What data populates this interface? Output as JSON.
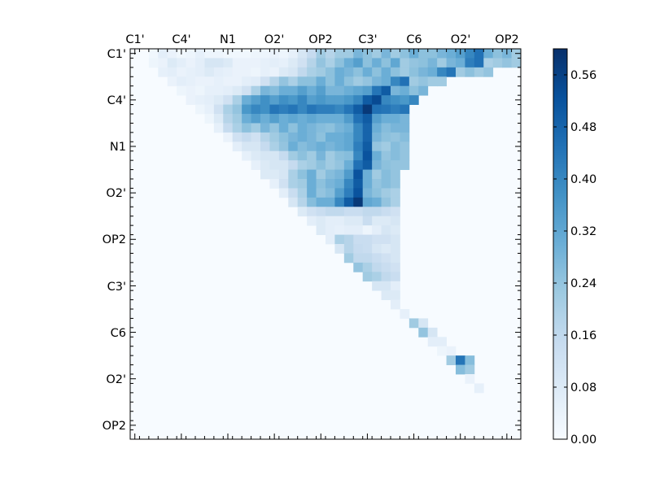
{
  "chart_data": {
    "type": "heatmap",
    "title": "",
    "xlabel": "",
    "ylabel": "",
    "n": 42,
    "x_tick_labels": [
      "C1'",
      "C4'",
      "N1",
      "O2'",
      "OP2",
      "C3'",
      "C6",
      "O2'",
      "OP2"
    ],
    "y_tick_labels": [
      "C1'",
      "C4'",
      "N1",
      "O2'",
      "OP2",
      "C3'",
      "C6",
      "O2'",
      "OP2"
    ],
    "label_positions": [
      0.5,
      5.5,
      10.5,
      15.5,
      20.5,
      25.5,
      30.5,
      35.5,
      40.5
    ],
    "colorbar": {
      "min": 0.0,
      "max": 0.6,
      "ticks": [
        "0.00",
        "0.08",
        "0.16",
        "0.24",
        "0.32",
        "0.40",
        "0.48",
        "0.56"
      ],
      "tick_values": [
        0.0,
        0.08,
        0.16,
        0.24,
        0.32,
        0.4,
        0.48,
        0.56
      ],
      "colormap": "Blues"
    },
    "colors": [
      "#f7fbff",
      "#deebf7",
      "#c6dbef",
      "#9ecae1",
      "#6baed6",
      "#4292c6",
      "#2171b5",
      "#08519c",
      "#08306b"
    ],
    "upper_rows": [
      [
        0.0,
        0.02,
        0.06,
        0.04,
        0.02,
        0.03,
        0.05,
        0.03,
        0.03,
        0.02,
        0.02,
        0.02,
        0.03,
        0.03,
        0.04,
        0.03,
        0.05,
        0.1,
        0.15,
        0.22,
        0.18,
        0.22,
        0.22,
        0.28,
        0.25,
        0.22,
        0.28,
        0.22,
        0.25,
        0.3,
        0.25,
        0.25,
        0.28,
        0.3,
        0.34,
        0.4,
        0.45,
        0.3,
        0.25,
        0.28,
        0.22
      ],
      [
        0.03,
        0.04,
        0.08,
        0.06,
        0.04,
        0.06,
        0.1,
        0.1,
        0.08,
        0.04,
        0.04,
        0.04,
        0.05,
        0.06,
        0.05,
        0.08,
        0.12,
        0.18,
        0.24,
        0.2,
        0.25,
        0.3,
        0.34,
        0.25,
        0.3,
        0.25,
        0.32,
        0.22,
        0.24,
        0.25,
        0.28,
        0.22,
        0.28,
        0.3,
        0.42,
        0.45,
        0.2,
        0.22,
        0.24,
        0.22
      ],
      [
        0.05,
        0.06,
        0.04,
        0.05,
        0.06,
        0.08,
        0.06,
        0.05,
        0.04,
        0.04,
        0.03,
        0.05,
        0.04,
        0.08,
        0.1,
        0.16,
        0.2,
        0.22,
        0.25,
        0.3,
        0.28,
        0.25,
        0.3,
        0.25,
        0.3,
        0.25,
        0.22,
        0.25,
        0.28,
        0.3,
        0.4,
        0.44,
        0.22,
        0.25,
        0.22,
        0.24
      ],
      [
        0.04,
        0.06,
        0.05,
        0.04,
        0.04,
        0.05,
        0.04,
        0.04,
        0.06,
        0.07,
        0.12,
        0.18,
        0.24,
        0.2,
        0.25,
        0.25,
        0.3,
        0.25,
        0.3,
        0.25,
        0.22,
        0.24,
        0.28,
        0.3,
        0.4,
        0.45,
        0.22,
        0.24,
        0.22,
        0.22
      ],
      [
        0.03,
        0.04,
        0.03,
        0.05,
        0.05,
        0.06,
        0.08,
        0.12,
        0.2,
        0.28,
        0.26,
        0.3,
        0.3,
        0.34,
        0.3,
        0.34,
        0.28,
        0.28,
        0.3,
        0.32,
        0.34,
        0.44,
        0.5,
        0.28,
        0.3,
        0.25,
        0.28
      ],
      [
        0.04,
        0.05,
        0.06,
        0.08,
        0.12,
        0.2,
        0.3,
        0.34,
        0.38,
        0.34,
        0.38,
        0.36,
        0.4,
        0.34,
        0.36,
        0.34,
        0.34,
        0.36,
        0.4,
        0.5,
        0.54,
        0.4,
        0.38,
        0.36,
        0.4
      ],
      [
        0.03,
        0.05,
        0.12,
        0.2,
        0.24,
        0.36,
        0.4,
        0.38,
        0.44,
        0.42,
        0.44,
        0.4,
        0.44,
        0.42,
        0.42,
        0.4,
        0.44,
        0.5,
        0.58,
        0.45,
        0.44,
        0.42,
        0.44
      ],
      [
        0.03,
        0.08,
        0.18,
        0.22,
        0.3,
        0.34,
        0.3,
        0.34,
        0.3,
        0.32,
        0.3,
        0.32,
        0.3,
        0.3,
        0.3,
        0.35,
        0.45,
        0.5,
        0.34,
        0.3,
        0.3,
        0.28
      ],
      [
        0.05,
        0.15,
        0.2,
        0.25,
        0.22,
        0.28,
        0.24,
        0.3,
        0.25,
        0.3,
        0.28,
        0.26,
        0.25,
        0.28,
        0.3,
        0.4,
        0.48,
        0.3,
        0.26,
        0.28,
        0.28
      ],
      [
        0.04,
        0.12,
        0.15,
        0.12,
        0.18,
        0.22,
        0.25,
        0.28,
        0.3,
        0.28,
        0.25,
        0.3,
        0.3,
        0.32,
        0.4,
        0.48,
        0.28,
        0.25,
        0.24,
        0.26
      ],
      [
        0.06,
        0.1,
        0.1,
        0.15,
        0.2,
        0.24,
        0.3,
        0.26,
        0.28,
        0.3,
        0.28,
        0.3,
        0.32,
        0.42,
        0.5,
        0.24,
        0.22,
        0.26,
        0.24
      ],
      [
        0.05,
        0.08,
        0.1,
        0.1,
        0.15,
        0.22,
        0.25,
        0.22,
        0.28,
        0.22,
        0.25,
        0.26,
        0.4,
        0.52,
        0.3,
        0.24,
        0.26,
        0.24
      ],
      [
        0.05,
        0.08,
        0.1,
        0.1,
        0.15,
        0.2,
        0.22,
        0.25,
        0.22,
        0.24,
        0.3,
        0.45,
        0.5,
        0.28,
        0.25,
        0.24,
        0.24
      ],
      [
        0.08,
        0.08,
        0.1,
        0.2,
        0.25,
        0.3,
        0.22,
        0.26,
        0.28,
        0.35,
        0.52,
        0.3,
        0.22,
        0.26,
        0.24
      ],
      [
        0.05,
        0.12,
        0.2,
        0.22,
        0.3,
        0.25,
        0.28,
        0.3,
        0.4,
        0.5,
        0.3,
        0.24,
        0.26,
        0.24
      ],
      [
        0.06,
        0.14,
        0.2,
        0.3,
        0.24,
        0.26,
        0.34,
        0.42,
        0.52,
        0.28,
        0.25,
        0.22,
        0.2
      ],
      [
        0.1,
        0.18,
        0.26,
        0.3,
        0.3,
        0.4,
        0.5,
        0.58,
        0.32,
        0.3,
        0.24,
        0.2
      ],
      [
        0.08,
        0.12,
        0.14,
        0.16,
        0.16,
        0.14,
        0.14,
        0.16,
        0.16,
        0.14,
        0.12
      ],
      [
        0.06,
        0.08,
        0.06,
        0.06,
        0.08,
        0.08,
        0.14,
        0.08,
        0.08,
        0.1
      ],
      [
        0.08,
        0.06,
        0.05,
        0.06,
        0.06,
        0.03,
        0.06,
        0.1,
        0.08
      ],
      [
        0.06,
        0.2,
        0.18,
        0.14,
        0.14,
        0.12,
        0.12,
        0.1
      ],
      [
        0.1,
        0.18,
        0.15,
        0.14,
        0.1,
        0.08,
        0.1
      ],
      [
        0.22,
        0.16,
        0.16,
        0.14,
        0.12,
        0.1
      ],
      [
        0.24,
        0.2,
        0.16,
        0.14,
        0.12
      ],
      [
        0.22,
        0.2,
        0.16,
        0.14
      ],
      [
        0.1,
        0.1,
        0.06
      ],
      [
        0.08,
        0.08
      ],
      [
        0.06
      ],
      [
        0.05
      ],
      [
        0.22,
        0.1
      ],
      [
        0.24,
        0.1
      ],
      [
        0.06,
        0.06
      ],
      [
        0.03,
        0.04
      ],
      [
        0.22,
        0.44,
        0.26
      ],
      [
        0.26,
        0.22
      ],
      [
        0.04
      ],
      [
        0.05
      ]
    ]
  }
}
